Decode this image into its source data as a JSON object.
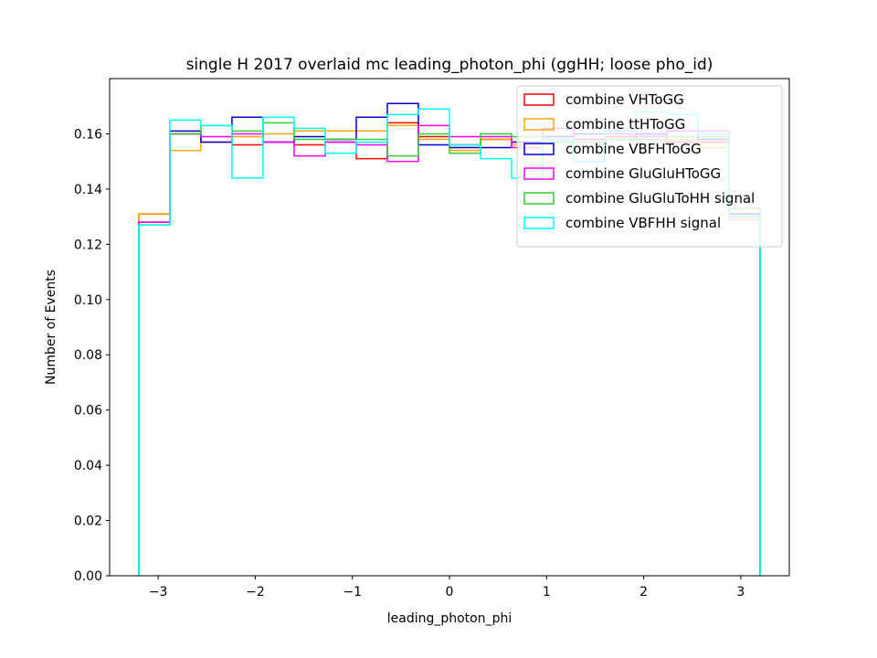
{
  "chart_data": {
    "type": "histogram-step",
    "title": "single H 2017 overlaid mc leading_photon_phi (ggHH; loose pho_id)",
    "xlabel": "leading_photon_phi",
    "ylabel": "Number of Events",
    "xlim": [
      -3.5,
      3.5
    ],
    "ylim": [
      0.0,
      0.18
    ],
    "xticks": [
      -3,
      -2,
      -1,
      0,
      1,
      2,
      3
    ],
    "xtick_labels": [
      "−3",
      "−2",
      "−1",
      "0",
      "1",
      "2",
      "3"
    ],
    "yticks": [
      0.0,
      0.02,
      0.04,
      0.06,
      0.08,
      0.1,
      0.12,
      0.14,
      0.16
    ],
    "ytick_labels": [
      "0.00",
      "0.02",
      "0.04",
      "0.06",
      "0.08",
      "0.10",
      "0.12",
      "0.14",
      "0.16"
    ],
    "legend_position": "top-right",
    "bin_edges": [
      -3.2,
      -2.88,
      -2.56,
      -2.24,
      -1.92,
      -1.6,
      -1.28,
      -0.96,
      -0.64,
      -0.32,
      0.0,
      0.32,
      0.64,
      0.96,
      1.28,
      1.6,
      1.92,
      2.24,
      2.56,
      2.88,
      3.2
    ],
    "series": [
      {
        "name": "combine VHToGG",
        "color": "#ff0000",
        "values": [
          0.131,
          0.16,
          0.157,
          0.156,
          0.157,
          0.156,
          0.157,
          0.151,
          0.164,
          0.159,
          0.156,
          0.158,
          0.157,
          0.157,
          0.158,
          0.159,
          0.159,
          0.157,
          0.157,
          0.131
        ]
      },
      {
        "name": "combine ttHToGG",
        "color": "#ffa500",
        "values": [
          0.131,
          0.154,
          0.157,
          0.159,
          0.16,
          0.161,
          0.161,
          0.161,
          0.163,
          0.158,
          0.154,
          0.158,
          0.156,
          0.159,
          0.158,
          0.161,
          0.16,
          0.158,
          0.155,
          0.129
        ]
      },
      {
        "name": "combine VBFHToGG",
        "color": "#0000cc",
        "values": [
          0.128,
          0.161,
          0.157,
          0.166,
          0.157,
          0.159,
          0.158,
          0.166,
          0.171,
          0.156,
          0.155,
          0.155,
          0.157,
          0.159,
          0.16,
          0.158,
          0.16,
          0.161,
          0.158,
          0.131
        ]
      },
      {
        "name": "combine GluGluHToGG",
        "color": "#ff00ff",
        "values": [
          0.128,
          0.16,
          0.159,
          0.16,
          0.157,
          0.152,
          0.157,
          0.156,
          0.15,
          0.163,
          0.159,
          0.159,
          0.155,
          0.162,
          0.158,
          0.16,
          0.159,
          0.161,
          0.161,
          0.13
        ]
      },
      {
        "name": "combine GluGluToHH signal",
        "color": "#33cc33",
        "values": [
          0.127,
          0.16,
          0.163,
          0.161,
          0.164,
          0.158,
          0.158,
          0.158,
          0.152,
          0.16,
          0.153,
          0.16,
          0.159,
          0.157,
          0.157,
          0.158,
          0.158,
          0.159,
          0.159,
          0.133
        ]
      },
      {
        "name": "combine VBFHH signal",
        "color": "#00ffff",
        "values": [
          0.127,
          0.165,
          0.163,
          0.144,
          0.166,
          0.162,
          0.153,
          0.157,
          0.167,
          0.169,
          0.156,
          0.151,
          0.144,
          0.158,
          0.15,
          0.161,
          0.168,
          0.167,
          0.16,
          0.13
        ]
      }
    ]
  }
}
